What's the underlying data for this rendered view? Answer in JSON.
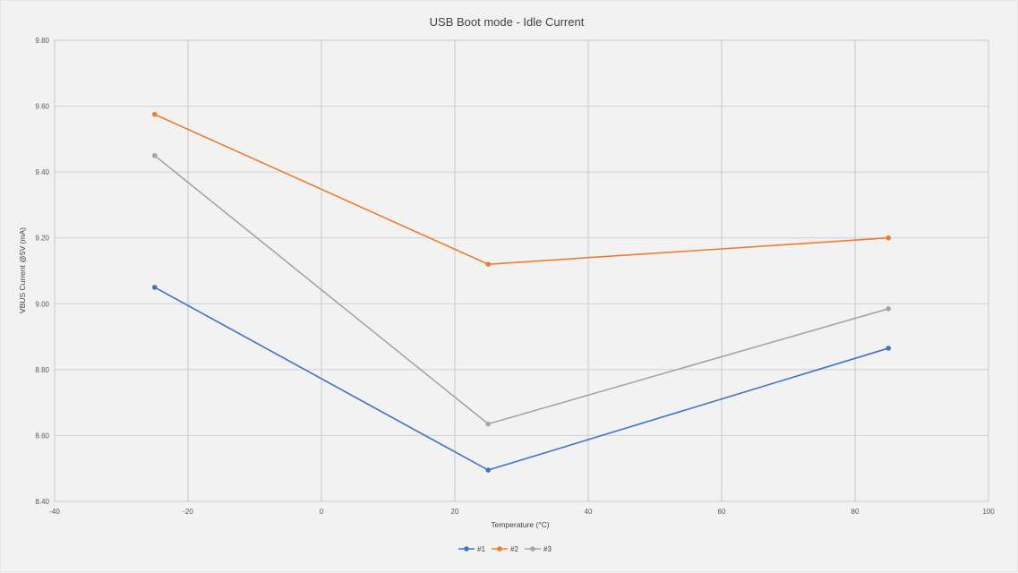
{
  "chart_data": {
    "type": "line",
    "title": "USB Boot mode - Idle Current",
    "xlabel": "Temperature (°C)",
    "ylabel": "VBUS Current @5V (mA)",
    "xlim": [
      -40,
      100
    ],
    "ylim": [
      8.4,
      9.8
    ],
    "xticks": [
      "-40",
      "-20",
      "0",
      "20",
      "40",
      "60",
      "80",
      "100"
    ],
    "yticks": [
      "8.40",
      "8.60",
      "8.80",
      "9.00",
      "9.20",
      "9.40",
      "9.60",
      "9.80"
    ],
    "grid": true,
    "legend_position": "bottom",
    "x": [
      -25,
      25,
      85
    ],
    "series": [
      {
        "name": "#1",
        "color": "#4472c4",
        "values": [
          9.05,
          8.495,
          8.865
        ]
      },
      {
        "name": "#2",
        "color": "#ed7d31",
        "values": [
          9.575,
          9.12,
          9.2
        ]
      },
      {
        "name": "#3",
        "color": "#a5a5a5",
        "values": [
          9.45,
          8.635,
          8.985
        ]
      }
    ]
  }
}
